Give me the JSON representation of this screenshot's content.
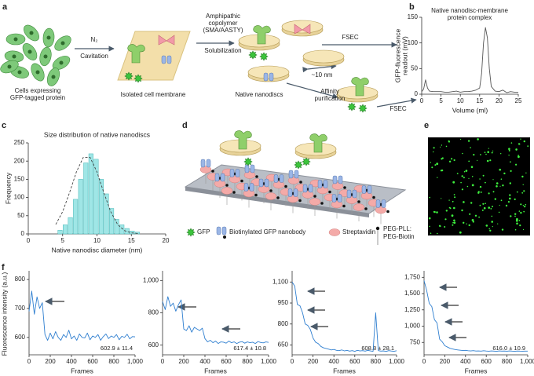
{
  "panel_a": {
    "label": "a",
    "cells": [
      "Cells expressing",
      "GFP-tagged protein"
    ],
    "gas": "N₂",
    "step1": "Cavitation",
    "membrane": "Isolated cell membrane",
    "copolymer": [
      "Amphipathic",
      "copolymer",
      "(SMA/AASTY)"
    ],
    "step2": "Solubilization",
    "nanodiscs": "Native nanodiscs",
    "size": "~10 nm",
    "fsec": "FSEC",
    "purification": [
      "Affinity",
      "purification"
    ],
    "fsec2": "FSEC"
  },
  "chart_data": [
    {
      "label": "b",
      "type": "line",
      "annotation": [
        "Native nanodisc-membrane",
        "protein complex"
      ],
      "xlabel": "Volume (ml)",
      "ylabel": [
        "GFP-fluorescence",
        "readout (mV)"
      ],
      "x": [
        0,
        0.5,
        1,
        1.5,
        2,
        3,
        4,
        5,
        6,
        7,
        8,
        9,
        10,
        11,
        12,
        13,
        14,
        15,
        15.5,
        16,
        16.5,
        17,
        17.5,
        18,
        19,
        20,
        21,
        22,
        23,
        24,
        25
      ],
      "values": [
        5,
        10,
        28,
        12,
        6,
        5,
        5,
        5,
        4,
        4,
        5,
        6,
        4,
        5,
        5,
        6,
        8,
        12,
        40,
        100,
        130,
        110,
        50,
        15,
        6,
        5,
        8,
        3,
        5,
        4,
        4
      ],
      "color": "#555555",
      "xlim": [
        0,
        25
      ],
      "ylim": [
        0,
        150
      ],
      "xticks": [
        0,
        5,
        10,
        15,
        20,
        25
      ],
      "yticks": [
        0,
        50,
        100,
        150
      ]
    },
    {
      "label": "c",
      "type": "histogram",
      "title": "Size distribution of native nanodiscs",
      "xlabel": "Native nanodisc diameter (nm)",
      "ylabel": "Frequency",
      "bins": [
        4.25,
        5,
        5.75,
        6.5,
        7.25,
        8,
        8.75,
        9.5,
        10.25,
        11,
        11.75,
        12.5,
        13.25,
        14,
        14.75,
        15.5,
        16.25
      ],
      "values": [
        10,
        25,
        45,
        95,
        150,
        195,
        220,
        205,
        150,
        110,
        70,
        40,
        25,
        15,
        8,
        5
      ],
      "color": "#9fe6e6",
      "fit": {
        "x": [
          4,
          5,
          6,
          7,
          8,
          9,
          10,
          11,
          12,
          13,
          14,
          15,
          16
        ],
        "values": [
          26,
          61,
          113,
          170,
          210,
          210,
          170,
          113,
          61,
          26,
          9,
          3,
          1
        ]
      },
      "xlim": [
        0,
        20
      ],
      "ylim": [
        0,
        250
      ],
      "xticks": [
        0,
        5,
        10,
        15,
        20
      ],
      "yticks": [
        0,
        50,
        100,
        150,
        200,
        250
      ]
    },
    {
      "label": "f",
      "type": "line",
      "ylabel": "Fluorescence intensity (a.u.)",
      "xlabel": "Frames",
      "annotation": "602.9 ± 11.4",
      "color": "#2f7fd0",
      "x": [
        0,
        25,
        50,
        75,
        100,
        125,
        150,
        175,
        200,
        225,
        250,
        275,
        300,
        325,
        350,
        375,
        400,
        425,
        450,
        475,
        500,
        525,
        550,
        575,
        600,
        625,
        650,
        675,
        700,
        725,
        750,
        775,
        800,
        825,
        850,
        875,
        900,
        925,
        950,
        975,
        1000
      ],
      "values": [
        690,
        760,
        680,
        740,
        700,
        720,
        610,
        590,
        615,
        595,
        620,
        600,
        590,
        610,
        600,
        625,
        595,
        605,
        590,
        612,
        600,
        598,
        615,
        592,
        605,
        600,
        610,
        590,
        603,
        612,
        596,
        605,
        600,
        610,
        592,
        604,
        600,
        611,
        595,
        603,
        602
      ],
      "xlim": [
        0,
        1000
      ],
      "ylim": [
        540,
        830
      ],
      "xticks": [
        0,
        200,
        400,
        600,
        800,
        {
          "value": 1000,
          "label": "1,000"
        }
      ],
      "yticks": [
        600,
        700,
        800
      ]
    },
    {
      "type": "line",
      "xlabel": "Frames",
      "annotation": "617.4 ± 10.8",
      "color": "#2f7fd0",
      "x": [
        0,
        25,
        50,
        75,
        100,
        125,
        150,
        175,
        200,
        225,
        250,
        275,
        300,
        325,
        350,
        375,
        400,
        425,
        450,
        475,
        500,
        525,
        550,
        575,
        600,
        625,
        650,
        675,
        700,
        725,
        750,
        775,
        800,
        825,
        850,
        875,
        900,
        925,
        950,
        975,
        1000
      ],
      "values": [
        870,
        820,
        900,
        840,
        860,
        810,
        850,
        880,
        700,
        690,
        720,
        680,
        710,
        700,
        690,
        705,
        640,
        620,
        630,
        615,
        625,
        610,
        620,
        618,
        612,
        625,
        615,
        620,
        610,
        618,
        622,
        612,
        620,
        615,
        618,
        610,
        622,
        616,
        614,
        620,
        617
      ],
      "xlim": [
        0,
        1000
      ],
      "ylim": [
        540,
        1060
      ],
      "xticks": [
        0,
        200,
        400,
        600,
        800,
        {
          "value": 1000,
          "label": "1,000"
        }
      ],
      "yticks": [
        600,
        800,
        {
          "value": 1000,
          "label": "1,000"
        }
      ]
    },
    {
      "type": "line",
      "xlabel": "Frames",
      "annotation": "608.8 ± 28.1",
      "color": "#2f7fd0",
      "x": [
        0,
        25,
        50,
        75,
        100,
        125,
        150,
        175,
        200,
        225,
        250,
        275,
        300,
        325,
        350,
        375,
        400,
        425,
        450,
        475,
        500,
        525,
        550,
        575,
        600,
        625,
        650,
        675,
        700,
        725,
        750,
        775,
        800,
        825,
        850,
        875,
        900,
        925,
        950,
        975,
        1000
      ],
      "values": [
        1100,
        1070,
        940,
        930,
        880,
        800,
        790,
        760,
        700,
        670,
        660,
        640,
        630,
        625,
        620,
        615,
        618,
        612,
        610,
        615,
        608,
        612,
        606,
        610,
        605,
        612,
        608,
        610,
        606,
        612,
        608,
        605,
        880,
        610,
        606,
        608,
        604,
        610,
        607,
        605,
        609
      ],
      "xlim": [
        0,
        1000
      ],
      "ylim": [
        580,
        1180
      ],
      "xticks": [
        0,
        200,
        400,
        600,
        800,
        {
          "value": 1000,
          "label": "1,000"
        }
      ],
      "yticks": [
        650,
        800,
        950,
        {
          "value": 1100,
          "label": "1,100"
        }
      ]
    },
    {
      "type": "line",
      "xlabel": "Frames",
      "annotation": "616.0 ± 10.9",
      "color": "#2f7fd0",
      "x": [
        0,
        25,
        50,
        75,
        100,
        125,
        150,
        175,
        200,
        225,
        250,
        275,
        300,
        325,
        350,
        375,
        400,
        425,
        450,
        475,
        500,
        525,
        550,
        575,
        600,
        625,
        650,
        675,
        700,
        725,
        750,
        775,
        800,
        825,
        850,
        875,
        900,
        925,
        950,
        975,
        1000
      ],
      "values": [
        1700,
        1550,
        1350,
        1300,
        1100,
        1050,
        800,
        760,
        700,
        680,
        660,
        650,
        640,
        635,
        630,
        625,
        628,
        622,
        620,
        624,
        618,
        620,
        616,
        622,
        618,
        615,
        620,
        617,
        614,
        619,
        616,
        618,
        615,
        620,
        616,
        614,
        618,
        616,
        615,
        617,
        616
      ],
      "xlim": [
        0,
        1000
      ],
      "ylim": [
        560,
        1850
      ],
      "xticks": [
        0,
        200,
        400,
        600,
        800,
        {
          "value": 1000,
          "label": "1,000"
        }
      ],
      "yticks": [
        750,
        {
          "value": 1000,
          "label": "1,000"
        },
        {
          "value": 1250,
          "label": "1,250"
        },
        {
          "value": 1500,
          "label": "1,500"
        },
        {
          "value": 1750,
          "label": "1,750"
        }
      ]
    }
  ],
  "panel_d": {
    "label": "d",
    "legend": [
      "GFP",
      "Biotinylated GFP nanobody",
      "Streptavidin"
    ],
    "peg": [
      "PEG-PLL:",
      "PEG-Biotin"
    ]
  },
  "panel_e": {
    "label": "e"
  }
}
